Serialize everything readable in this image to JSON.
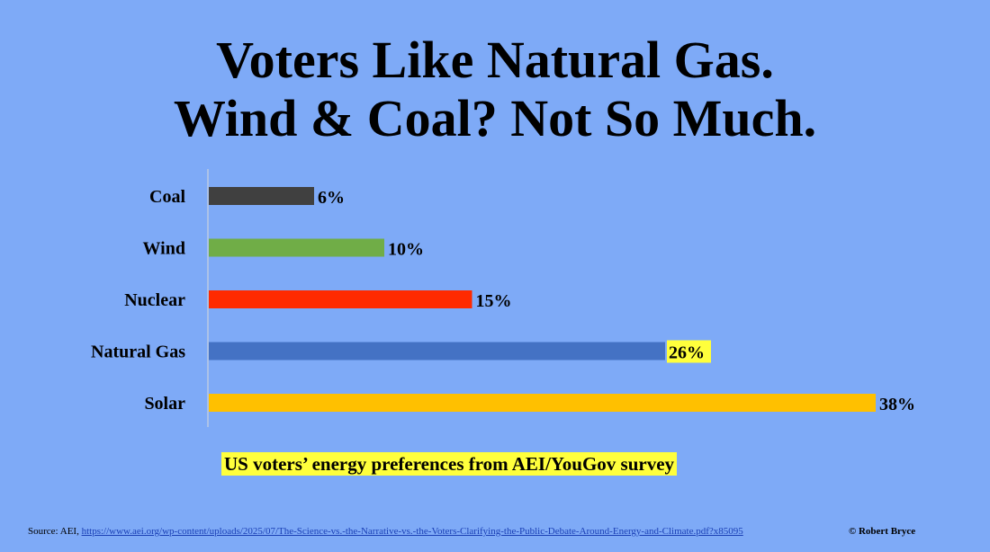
{
  "title_line1": "Voters Like Natural Gas.",
  "title_line2": "Wind & Coal? Not So Much.",
  "caption": "US voters’ energy preferences from AEI/YouGov survey",
  "source_prefix": "Source: AEI, ",
  "source_link": "https://www.aei.org/wp-content/uploads/2025/07/The-Science-vs.-the-Narrative-vs.-the-Voters-Clarifying-the-Public-Debate-Around-Energy-and-Climate.pdf?x85095",
  "copyright": "© Robert Bryce",
  "chart_data": {
    "type": "bar",
    "orientation": "horizontal",
    "categories": [
      "Coal",
      "Wind",
      "Nuclear",
      "Natural Gas",
      "Solar"
    ],
    "values": [
      6,
      10,
      15,
      26,
      38
    ],
    "value_labels": [
      "6%",
      "10%",
      "15%",
      "26%",
      "38%"
    ],
    "colors": [
      "#404040",
      "#70ad47",
      "#ff2a00",
      "#4472c4",
      "#ffc000"
    ],
    "highlighted_labels": [
      false,
      false,
      false,
      true,
      false
    ],
    "highlight_color": "#ffff3c",
    "grid": false,
    "legend": "none"
  }
}
